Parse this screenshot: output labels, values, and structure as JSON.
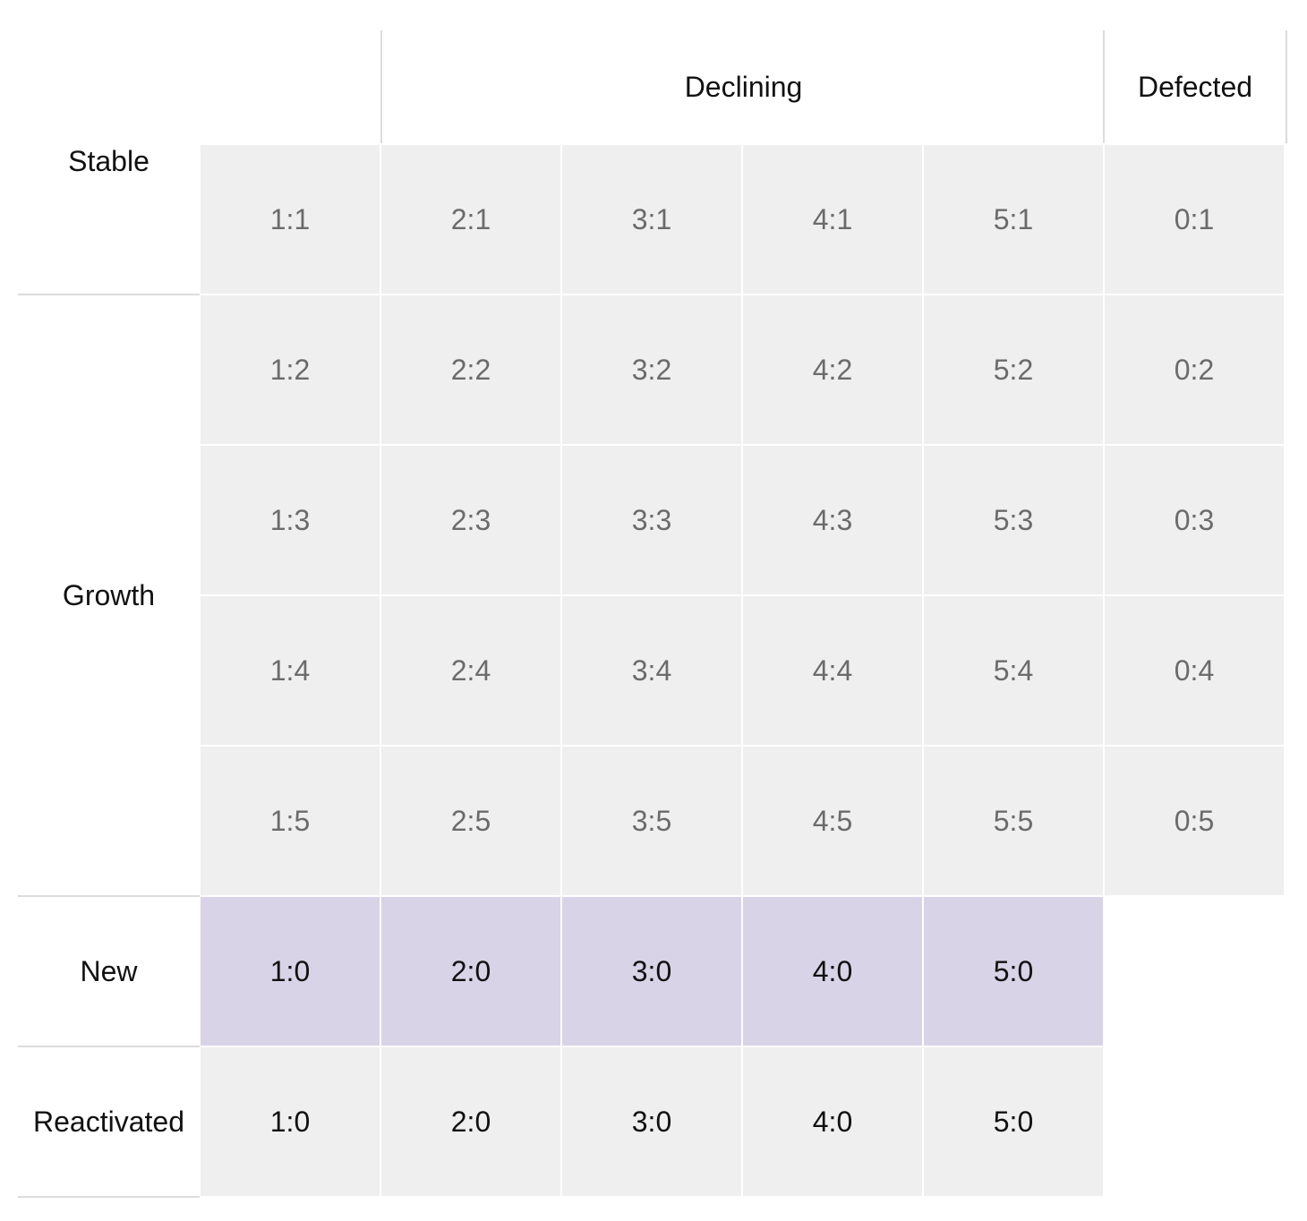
{
  "columns": {
    "declining": "Declining",
    "defected": "Defected"
  },
  "rows": {
    "stable": "Stable",
    "growth": "Growth",
    "new": "New",
    "reactivated": "Reactivated"
  },
  "grid": [
    [
      "1:1",
      "2:1",
      "3:1",
      "4:1",
      "5:1",
      "0:1"
    ],
    [
      "1:2",
      "2:2",
      "3:2",
      "4:2",
      "5:2",
      "0:2"
    ],
    [
      "1:3",
      "2:3",
      "3:3",
      "4:3",
      "5:3",
      "0:3"
    ],
    [
      "1:4",
      "2:4",
      "3:4",
      "4:4",
      "5:4",
      "0:4"
    ],
    [
      "1:5",
      "2:5",
      "3:5",
      "4:5",
      "5:5",
      "0:5"
    ],
    [
      "1:0",
      "2:0",
      "3:0",
      "4:0",
      "5:0"
    ],
    [
      "1:0",
      "2:0",
      "3:0",
      "4:0",
      "5:0"
    ]
  ],
  "colors": {
    "cell_grey": "#efefef",
    "cell_new": "#d8d3e6",
    "text_muted": "#6b6b6b",
    "text_dark": "#111111",
    "divider": "#dcdcdc"
  }
}
